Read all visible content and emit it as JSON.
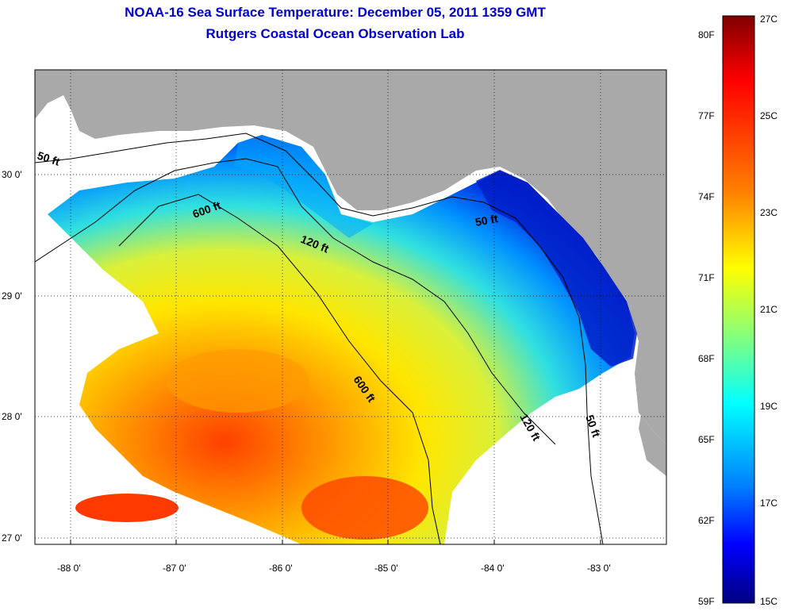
{
  "title": "NOAA-16 Sea Surface Temperature:  December 05, 2011 1359 GMT",
  "subtitle": "Rutgers Coastal Ocean Observation Lab",
  "map": {
    "lon_ticks": [
      "-88 0'",
      "-87 0'",
      "-86 0'",
      "-85 0'",
      "-84 0'",
      "-83 0'"
    ],
    "lat_ticks": [
      "30 0'",
      "29 0'",
      "28 0'",
      "27 0'"
    ],
    "contour_labels": [
      "50 ft",
      "600 ft",
      "120 ft",
      "50 ft",
      "600 ft",
      "120 ft",
      "50 ft"
    ],
    "colors": {
      "land": "#a9a9a9",
      "no_data": "#ffffff"
    }
  },
  "colorbar": {
    "fahrenheit_labels": [
      "80F",
      "77F",
      "74F",
      "71F",
      "68F",
      "65F",
      "62F",
      "59F"
    ],
    "celsius_labels": [
      "27C",
      "25C",
      "23C",
      "21C",
      "19C",
      "17C",
      "15C"
    ],
    "colormap": [
      "#800000",
      "#ff0000",
      "#ff8000",
      "#ffff00",
      "#80ff80",
      "#00ffff",
      "#0080ff",
      "#0000ff",
      "#000080"
    ]
  }
}
